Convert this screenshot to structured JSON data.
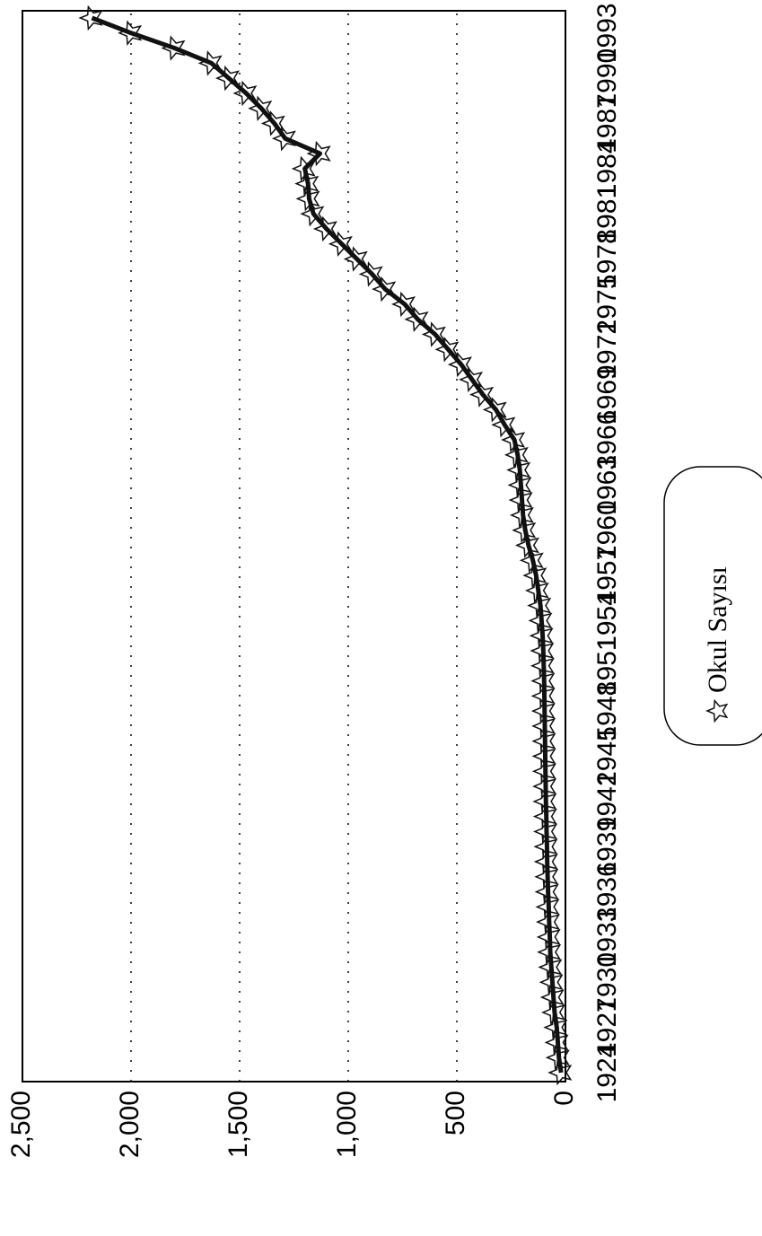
{
  "chart_data": {
    "type": "line",
    "categories": [
      "1924",
      null,
      null,
      "1927",
      null,
      null,
      "1930",
      null,
      null,
      "1933",
      null,
      null,
      "1936",
      null,
      null,
      "1939",
      null,
      null,
      "1942",
      null,
      null,
      "1945",
      null,
      null,
      "1948",
      null,
      null,
      "1951",
      null,
      null,
      "1954",
      null,
      null,
      "1957",
      null,
      null,
      "1960",
      null,
      null,
      "1963",
      null,
      null,
      "1966",
      null,
      null,
      "1969",
      null,
      null,
      "1972",
      null,
      null,
      "1975",
      null,
      null,
      "1978",
      null,
      null,
      "1981",
      null,
      null,
      "1984",
      null,
      null,
      "1987",
      null,
      null,
      "1990",
      null,
      null,
      "1993",
      null
    ],
    "series": [
      {
        "name": "Okul Sayısı",
        "color": "#111111",
        "values": [
          20,
          30,
          35,
          40,
          50,
          55,
          60,
          65,
          70,
          72,
          75,
          77,
          80,
          82,
          84,
          85,
          87,
          88,
          90,
          91,
          92,
          93,
          94,
          95,
          96,
          97,
          98,
          100,
          102,
          105,
          110,
          115,
          125,
          135,
          150,
          170,
          185,
          195,
          200,
          205,
          210,
          220,
          235,
          280,
          320,
          380,
          430,
          480,
          540,
          600,
          680,
          740,
          830,
          890,
          960,
          1030,
          1100,
          1160,
          1180,
          1185,
          1200,
          1130,
          1290,
          1340,
          1400,
          1470,
          1550,
          1630,
          1800,
          2000,
          2180
        ]
      }
    ],
    "ylim": [
      0,
      2500
    ],
    "yticks": [
      0,
      {
        "value": 500,
        "label": "500"
      },
      {
        "value": 1000,
        "label": "1,000"
      },
      {
        "value": 1500,
        "label": "1,500"
      },
      {
        "value": 2000,
        "label": "2,000"
      },
      {
        "value": 2500,
        "label": "2,500"
      }
    ],
    "grid": true
  }
}
